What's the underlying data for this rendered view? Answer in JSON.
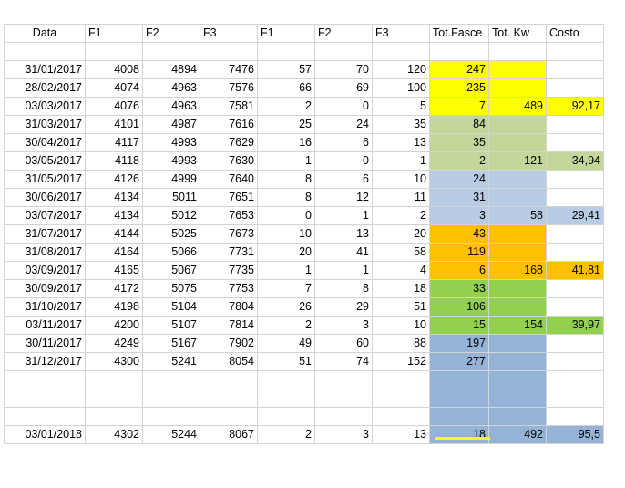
{
  "headers": [
    "Data",
    "F1",
    "F2",
    "F3",
    "F1",
    "F2",
    "F3",
    "Tot.Fasce",
    "Tot. Kw",
    "Costo"
  ],
  "rows": [
    {
      "cells": [
        "31/01/2017",
        "4008",
        "4894",
        "7476",
        "57",
        "70",
        "120",
        "247",
        "",
        ""
      ],
      "fill": "yellow",
      "fill_kw": "yellow",
      "fill_cost": ""
    },
    {
      "cells": [
        "28/02/2017",
        "4074",
        "4963",
        "7576",
        "66",
        "69",
        "100",
        "235",
        "",
        ""
      ],
      "fill": "yellow",
      "fill_kw": "yellow",
      "fill_cost": ""
    },
    {
      "cells": [
        "03/03/2017",
        "4076",
        "4963",
        "7581",
        "2",
        "0",
        "5",
        "7",
        "489",
        "92,17"
      ],
      "fill": "yellow",
      "fill_kw": "yellow",
      "fill_cost": "yellow"
    },
    {
      "cells": [
        "31/03/2017",
        "4101",
        "4987",
        "7616",
        "25",
        "24",
        "35",
        "84",
        "",
        ""
      ],
      "fill": "lgreen",
      "fill_kw": "lgreen",
      "fill_cost": ""
    },
    {
      "cells": [
        "30/04/2017",
        "4117",
        "4993",
        "7629",
        "16",
        "6",
        "13",
        "35",
        "",
        ""
      ],
      "fill": "lgreen",
      "fill_kw": "lgreen",
      "fill_cost": ""
    },
    {
      "cells": [
        "03/05/2017",
        "4118",
        "4993",
        "7630",
        "1",
        "0",
        "1",
        "2",
        "121",
        "34,94"
      ],
      "fill": "lgreen",
      "fill_kw": "lgreen",
      "fill_cost": "lgreen"
    },
    {
      "cells": [
        "31/05/2017",
        "4126",
        "4999",
        "7640",
        "8",
        "6",
        "10",
        "24",
        "",
        ""
      ],
      "fill": "lblue",
      "fill_kw": "lblue",
      "fill_cost": ""
    },
    {
      "cells": [
        "30/06/2017",
        "4134",
        "5011",
        "7651",
        "8",
        "12",
        "11",
        "31",
        "",
        ""
      ],
      "fill": "lblue",
      "fill_kw": "lblue",
      "fill_cost": ""
    },
    {
      "cells": [
        "03/07/2017",
        "4134",
        "5012",
        "7653",
        "0",
        "1",
        "2",
        "3",
        "58",
        "29,41"
      ],
      "fill": "lblue",
      "fill_kw": "lblue",
      "fill_cost": "lblue"
    },
    {
      "cells": [
        "31/07/2017",
        "4144",
        "5025",
        "7673",
        "10",
        "13",
        "20",
        "43",
        "",
        ""
      ],
      "fill": "orange",
      "fill_kw": "orange",
      "fill_cost": ""
    },
    {
      "cells": [
        "31/08/2017",
        "4164",
        "5066",
        "7731",
        "20",
        "41",
        "58",
        "119",
        "",
        ""
      ],
      "fill": "orange",
      "fill_kw": "orange",
      "fill_cost": ""
    },
    {
      "cells": [
        "03/09/2017",
        "4165",
        "5067",
        "7735",
        "1",
        "1",
        "4",
        "6",
        "168",
        "41,81"
      ],
      "fill": "orange",
      "fill_kw": "orange",
      "fill_cost": "orange"
    },
    {
      "cells": [
        "30/09/2017",
        "4172",
        "5075",
        "7753",
        "7",
        "8",
        "18",
        "33",
        "",
        ""
      ],
      "fill": "green",
      "fill_kw": "green",
      "fill_cost": ""
    },
    {
      "cells": [
        "31/10/2017",
        "4198",
        "5104",
        "7804",
        "26",
        "29",
        "51",
        "106",
        "",
        ""
      ],
      "fill": "green",
      "fill_kw": "green",
      "fill_cost": ""
    },
    {
      "cells": [
        "03/11/2017",
        "4200",
        "5107",
        "7814",
        "2",
        "3",
        "10",
        "15",
        "154",
        "39,97"
      ],
      "fill": "green",
      "fill_kw": "green",
      "fill_cost": "green"
    },
    {
      "cells": [
        "30/11/2017",
        "4249",
        "5167",
        "7902",
        "49",
        "60",
        "88",
        "197",
        "",
        ""
      ],
      "fill": "blue",
      "fill_kw": "blue",
      "fill_cost": ""
    },
    {
      "cells": [
        "31/12/2017",
        "4300",
        "5241",
        "8054",
        "51",
        "74",
        "152",
        "277",
        "",
        ""
      ],
      "fill": "blue",
      "fill_kw": "blue",
      "fill_cost": ""
    },
    {
      "cells": [
        "",
        "",
        "",
        "",
        "",
        "",
        "",
        "",
        "",
        ""
      ],
      "fill": "blue",
      "fill_kw": "blue",
      "fill_cost": ""
    },
    {
      "cells": [
        "",
        "",
        "",
        "",
        "",
        "",
        "",
        "",
        "",
        ""
      ],
      "fill": "blue",
      "fill_kw": "blue",
      "fill_cost": ""
    },
    {
      "cells": [
        "",
        "",
        "",
        "",
        "",
        "",
        "",
        "",
        "",
        ""
      ],
      "fill": "blue",
      "fill_kw": "blue",
      "fill_cost": ""
    },
    {
      "cells": [
        "03/01/2018",
        "4302",
        "5244",
        "8067",
        "2",
        "3",
        "13",
        "18",
        "492",
        "95,5"
      ],
      "fill": "blue",
      "fill_kw": "blue",
      "fill_cost": "blue"
    }
  ],
  "colors": {
    "yellow": "#ffff00",
    "light_green": "#c4d79b",
    "light_blue": "#b8cce4",
    "orange": "#ffc000",
    "green": "#92d050",
    "blue": "#95b3d7",
    "gridline": "#d4d4d4"
  }
}
